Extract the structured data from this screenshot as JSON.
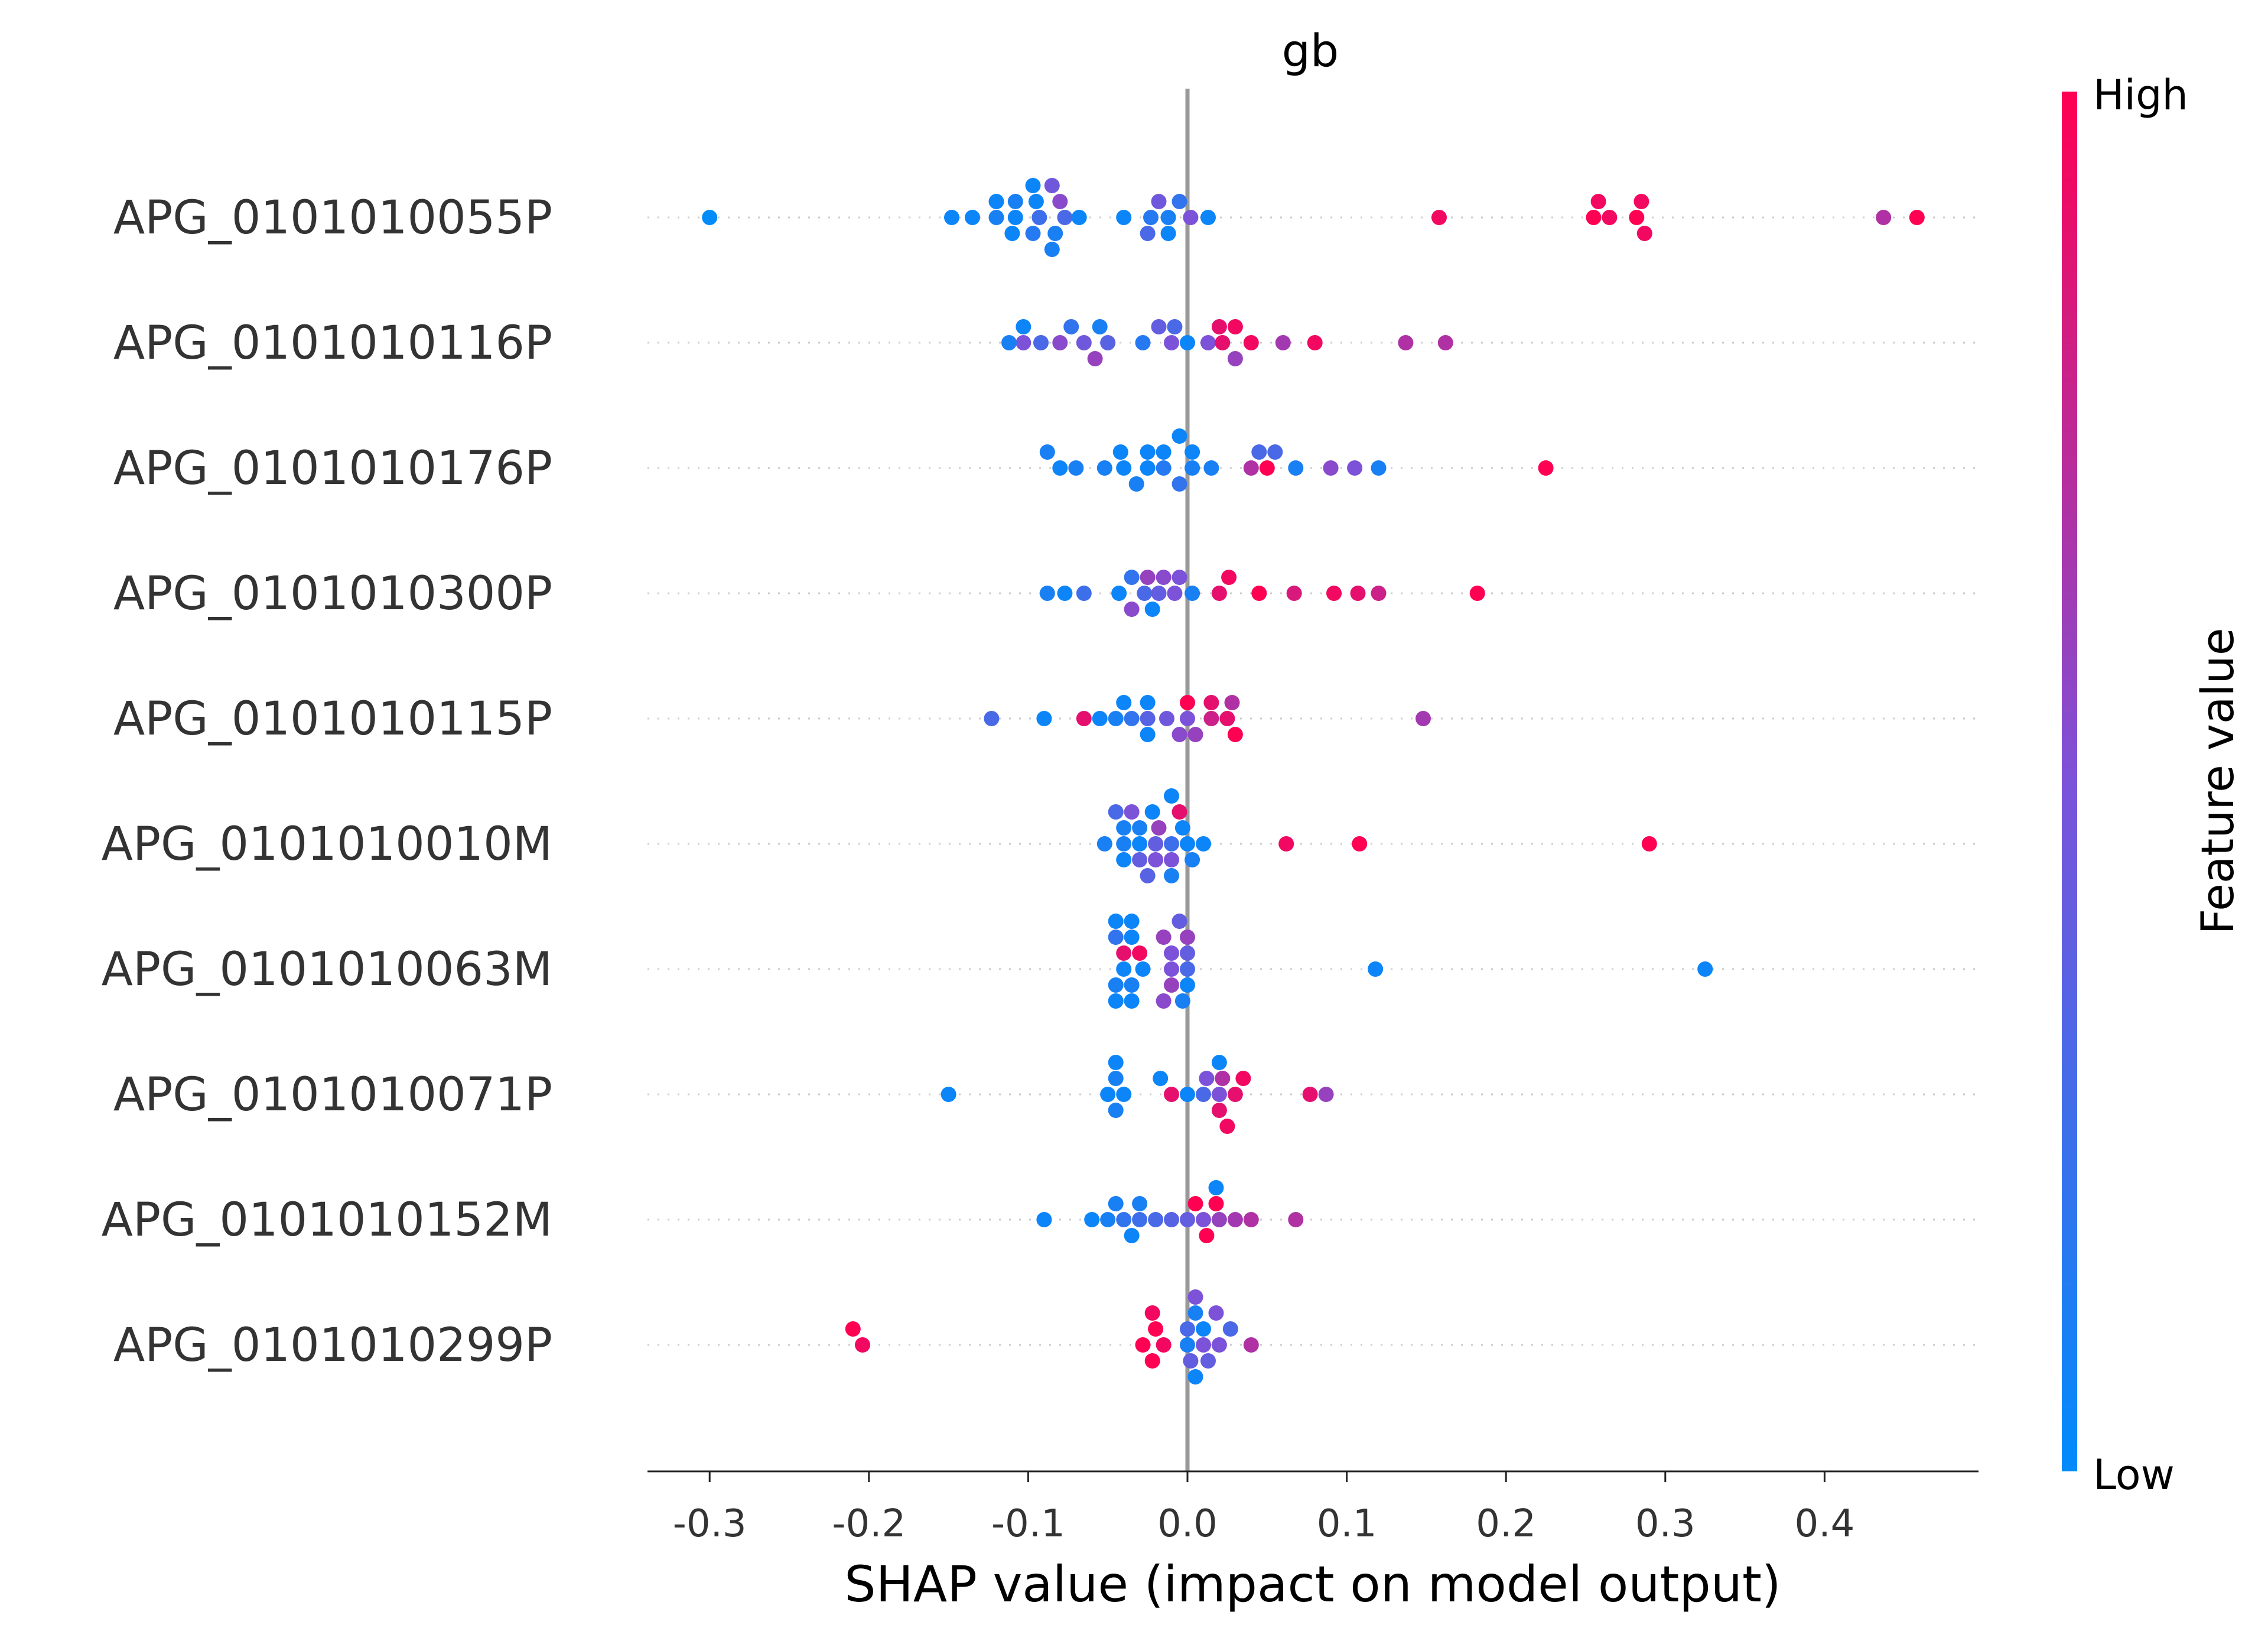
{
  "chart_data": {
    "type": "scatter",
    "title": "gb",
    "xlabel": "SHAP value (impact on model output)",
    "xlim": [
      -0.335,
      0.5
    ],
    "xticks": [
      -0.3,
      -0.2,
      -0.1,
      0.0,
      0.1,
      0.2,
      0.3,
      0.4
    ],
    "xtick_labels": [
      "-0.3",
      "-0.2",
      "-0.1",
      "0.0",
      "0.1",
      "0.2",
      "0.3",
      "0.4"
    ],
    "colorbar": {
      "label": "Feature value",
      "high_label": "High",
      "low_label": "Low",
      "low_color": "#008bfb",
      "mid_color": "#7c52d9",
      "high_color": "#ff0052"
    },
    "features": [
      {
        "name": "APG_0101010055P",
        "points": [
          [
            -0.3,
            0.0
          ],
          [
            -0.148,
            0.05
          ],
          [
            -0.135,
            0.05
          ],
          [
            -0.12,
            0.1
          ],
          [
            -0.108,
            0.05
          ],
          [
            -0.097,
            0.15
          ],
          [
            -0.093,
            0.25
          ],
          [
            -0.085,
            0.45
          ],
          [
            -0.08,
            0.55
          ],
          [
            -0.068,
            0.05
          ],
          [
            -0.04,
            0.05
          ],
          [
            -0.025,
            0.3
          ],
          [
            -0.012,
            0.1
          ],
          [
            -0.018,
            0.45
          ],
          [
            -0.005,
            0.2
          ],
          [
            0.002,
            0.5
          ],
          [
            0.013,
            0.05
          ],
          [
            0.158,
            0.95
          ],
          [
            0.255,
            1.0
          ],
          [
            0.265,
            0.95
          ],
          [
            0.285,
            0.95
          ],
          [
            0.282,
            1.0
          ],
          [
            0.437,
            0.7
          ],
          [
            0.458,
            1.0
          ],
          [
            -0.12,
            0.05
          ],
          [
            -0.108,
            0.1
          ],
          [
            -0.095,
            0.05
          ],
          [
            -0.083,
            0.1
          ],
          [
            -0.077,
            0.3
          ],
          [
            -0.11,
            0.05
          ],
          [
            -0.097,
            0.05
          ],
          [
            -0.085,
            0.1
          ],
          [
            -0.023,
            0.15
          ],
          [
            -0.012,
            0.05
          ],
          [
            0.258,
            0.95
          ],
          [
            0.287,
            0.95
          ]
        ]
      },
      {
        "name": "APG_0101010116P",
        "points": [
          [
            -0.112,
            0.1
          ],
          [
            -0.103,
            0.5
          ],
          [
            -0.092,
            0.3
          ],
          [
            -0.08,
            0.55
          ],
          [
            -0.073,
            0.2
          ],
          [
            -0.065,
            0.45
          ],
          [
            -0.058,
            0.6
          ],
          [
            -0.05,
            0.35
          ],
          [
            -0.028,
            0.15
          ],
          [
            -0.018,
            0.4
          ],
          [
            -0.008,
            0.3
          ],
          [
            0.0,
            0.05
          ],
          [
            0.013,
            0.5
          ],
          [
            0.022,
            0.9
          ],
          [
            0.03,
            0.95
          ],
          [
            0.04,
            0.95
          ],
          [
            0.06,
            0.65
          ],
          [
            0.08,
            0.95
          ],
          [
            0.137,
            0.7
          ],
          [
            0.162,
            0.7
          ],
          [
            -0.103,
            0.05
          ],
          [
            -0.055,
            0.1
          ],
          [
            -0.01,
            0.5
          ],
          [
            0.02,
            0.9
          ],
          [
            0.03,
            0.6
          ]
        ]
      },
      {
        "name": "APG_0101010176P",
        "points": [
          [
            -0.088,
            0.1
          ],
          [
            -0.08,
            0.05
          ],
          [
            -0.07,
            0.1
          ],
          [
            -0.052,
            0.1
          ],
          [
            -0.04,
            0.05
          ],
          [
            -0.032,
            0.1
          ],
          [
            -0.025,
            0.05
          ],
          [
            -0.015,
            0.15
          ],
          [
            -0.005,
            0.2
          ],
          [
            0.003,
            0.1
          ],
          [
            0.015,
            0.1
          ],
          [
            0.04,
            0.7
          ],
          [
            0.055,
            0.3
          ],
          [
            0.068,
            0.1
          ],
          [
            0.09,
            0.55
          ],
          [
            0.105,
            0.5
          ],
          [
            0.12,
            0.1
          ],
          [
            0.225,
            1.0
          ],
          [
            -0.042,
            0.05
          ],
          [
            -0.025,
            0.05
          ],
          [
            -0.015,
            0.05
          ],
          [
            -0.005,
            0.05
          ],
          [
            0.003,
            0.05
          ],
          [
            0.045,
            0.3
          ],
          [
            0.05,
            1.0
          ]
        ]
      },
      {
        "name": "APG_0101010300P",
        "points": [
          [
            -0.088,
            0.1
          ],
          [
            -0.077,
            0.05
          ],
          [
            -0.065,
            0.25
          ],
          [
            -0.043,
            0.05
          ],
          [
            -0.035,
            0.2
          ],
          [
            -0.027,
            0.3
          ],
          [
            -0.018,
            0.4
          ],
          [
            -0.008,
            0.5
          ],
          [
            0.003,
            0.1
          ],
          [
            0.02,
            0.9
          ],
          [
            0.026,
            0.95
          ],
          [
            0.045,
            1.0
          ],
          [
            0.067,
            0.85
          ],
          [
            0.092,
            0.95
          ],
          [
            0.107,
            0.9
          ],
          [
            0.12,
            0.8
          ],
          [
            0.182,
            1.0
          ],
          [
            -0.022,
            0.05
          ],
          [
            -0.035,
            0.55
          ],
          [
            -0.025,
            0.6
          ],
          [
            -0.015,
            0.55
          ],
          [
            -0.005,
            0.5
          ]
        ]
      },
      {
        "name": "APG_0101010115P",
        "points": [
          [
            -0.123,
            0.3
          ],
          [
            -0.09,
            0.05
          ],
          [
            -0.065,
            0.9
          ],
          [
            -0.055,
            0.05
          ],
          [
            -0.045,
            0.1
          ],
          [
            -0.035,
            0.2
          ],
          [
            -0.025,
            0.35
          ],
          [
            -0.013,
            0.45
          ],
          [
            -0.005,
            0.55
          ],
          [
            0.005,
            0.6
          ],
          [
            0.015,
            0.8
          ],
          [
            0.025,
            0.9
          ],
          [
            0.03,
            1.0
          ],
          [
            0.148,
            0.65
          ],
          [
            -0.04,
            0.05
          ],
          [
            -0.025,
            0.05
          ],
          [
            0.0,
            0.5
          ],
          [
            0.015,
            0.9
          ],
          [
            0.028,
            0.7
          ],
          [
            -0.025,
            0.05
          ],
          [
            0.0,
            1.0
          ]
        ]
      },
      {
        "name": "APG_0101010010M",
        "points": [
          [
            -0.052,
            0.1
          ],
          [
            -0.045,
            0.3
          ],
          [
            -0.04,
            0.1
          ],
          [
            -0.035,
            0.5
          ],
          [
            -0.03,
            0.05
          ],
          [
            -0.025,
            0.35
          ],
          [
            -0.018,
            0.6
          ],
          [
            -0.01,
            0.25
          ],
          [
            -0.003,
            0.05
          ],
          [
            0.003,
            0.1
          ],
          [
            0.01,
            0.05
          ],
          [
            0.062,
            0.95
          ],
          [
            0.108,
            1.0
          ],
          [
            0.29,
            1.0
          ],
          [
            -0.04,
            0.1
          ],
          [
            -0.03,
            0.1
          ],
          [
            -0.02,
            0.4
          ],
          [
            -0.01,
            0.5
          ],
          [
            0.0,
            0.05
          ],
          [
            -0.04,
            0.05
          ],
          [
            -0.03,
            0.4
          ],
          [
            -0.02,
            0.5
          ],
          [
            -0.01,
            0.1
          ],
          [
            -0.005,
            0.9
          ],
          [
            -0.022,
            0.05
          ],
          [
            -0.01,
            0.05
          ]
        ]
      },
      {
        "name": "APG_0101010063M",
        "points": [
          [
            -0.045,
            0.1
          ],
          [
            -0.04,
            0.05
          ],
          [
            -0.035,
            0.1
          ],
          [
            -0.045,
            0.2
          ],
          [
            -0.04,
            0.9
          ],
          [
            -0.03,
            0.95
          ],
          [
            -0.015,
            0.6
          ],
          [
            -0.01,
            0.5
          ],
          [
            -0.005,
            0.4
          ],
          [
            0.0,
            0.3
          ],
          [
            -0.003,
            0.1
          ],
          [
            0.118,
            0.05
          ],
          [
            0.325,
            0.05
          ],
          [
            -0.045,
            0.05
          ],
          [
            -0.035,
            0.05
          ],
          [
            -0.015,
            0.55
          ],
          [
            0.0,
            0.4
          ],
          [
            -0.045,
            0.05
          ],
          [
            -0.035,
            0.05
          ],
          [
            -0.01,
            0.5
          ],
          [
            0.0,
            0.05
          ],
          [
            -0.035,
            0.05
          ],
          [
            -0.028,
            0.05
          ],
          [
            -0.01,
            0.6
          ],
          [
            0.0,
            0.6
          ]
        ]
      },
      {
        "name": "APG_0101010071P",
        "points": [
          [
            -0.15,
            0.05
          ],
          [
            -0.045,
            0.1
          ],
          [
            -0.04,
            0.05
          ],
          [
            -0.05,
            0.05
          ],
          [
            -0.045,
            0.1
          ],
          [
            -0.017,
            0.05
          ],
          [
            -0.01,
            0.9
          ],
          [
            0.0,
            0.05
          ],
          [
            0.01,
            0.3
          ],
          [
            0.02,
            0.5
          ],
          [
            0.025,
            0.95
          ],
          [
            0.03,
            0.9
          ],
          [
            0.035,
            0.95
          ],
          [
            0.077,
            0.9
          ],
          [
            0.087,
            0.6
          ],
          [
            -0.045,
            0.05
          ],
          [
            0.012,
            0.5
          ],
          [
            0.022,
            0.7
          ],
          [
            0.02,
            0.9
          ],
          [
            0.02,
            0.05
          ]
        ]
      },
      {
        "name": "APG_0101010152M",
        "points": [
          [
            -0.09,
            0.05
          ],
          [
            -0.06,
            0.05
          ],
          [
            -0.05,
            0.1
          ],
          [
            -0.04,
            0.2
          ],
          [
            -0.03,
            0.25
          ],
          [
            -0.02,
            0.3
          ],
          [
            -0.01,
            0.35
          ],
          [
            0.0,
            0.4
          ],
          [
            0.01,
            0.5
          ],
          [
            0.02,
            0.6
          ],
          [
            0.03,
            0.65
          ],
          [
            0.04,
            0.7
          ],
          [
            0.068,
            0.7
          ],
          [
            0.005,
            1.0
          ],
          [
            0.012,
            1.0
          ],
          [
            0.018,
            1.0
          ],
          [
            -0.035,
            0.05
          ],
          [
            0.018,
            0.05
          ],
          [
            -0.045,
            0.1
          ],
          [
            -0.03,
            0.1
          ]
        ]
      },
      {
        "name": "APG_0101010299P",
        "points": [
          [
            -0.21,
            1.0
          ],
          [
            -0.204,
            0.95
          ],
          [
            -0.028,
            1.0
          ],
          [
            -0.022,
            1.0
          ],
          [
            -0.015,
            0.95
          ],
          [
            0.0,
            0.1
          ],
          [
            0.005,
            0.1
          ],
          [
            0.013,
            0.4
          ],
          [
            0.02,
            0.5
          ],
          [
            0.027,
            0.3
          ],
          [
            0.04,
            0.7
          ],
          [
            -0.022,
            0.95
          ],
          [
            0.0,
            0.3
          ],
          [
            0.005,
            0.05
          ],
          [
            0.01,
            0.5
          ],
          [
            0.002,
            0.4
          ],
          [
            0.01,
            0.05
          ],
          [
            0.018,
            0.5
          ],
          [
            0.005,
            0.5
          ],
          [
            -0.02,
            1.0
          ]
        ]
      }
    ]
  }
}
